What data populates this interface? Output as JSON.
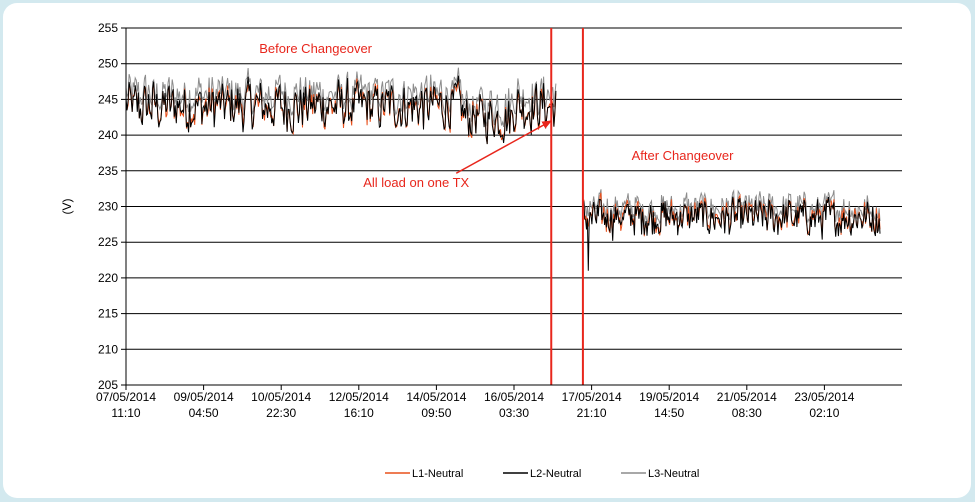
{
  "chart_data": {
    "type": "line",
    "ylabel": "(V)",
    "xlabel": "",
    "ylim": [
      205,
      255
    ],
    "yticks": [
      205,
      210,
      215,
      220,
      225,
      230,
      235,
      240,
      245,
      250,
      255
    ],
    "xticks": [
      {
        "date": "07/05/2014",
        "time": "11:10"
      },
      {
        "date": "09/05/2014",
        "time": "04:50"
      },
      {
        "date": "10/05/2014",
        "time": "22:30"
      },
      {
        "date": "12/05/2014",
        "time": "16:10"
      },
      {
        "date": "14/05/2014",
        "time": "09:50"
      },
      {
        "date": "16/05/2014",
        "time": "03:30"
      },
      {
        "date": "17/05/2014",
        "time": "21:10"
      },
      {
        "date": "19/05/2014",
        "time": "14:50"
      },
      {
        "date": "21/05/2014",
        "time": "08:30"
      },
      {
        "date": "23/05/2014",
        "time": "02:10"
      }
    ],
    "grid": true,
    "legend_position": "bottom",
    "series": [
      {
        "name": "L1-Neutral",
        "color": "#e8501c",
        "segments": [
          {
            "x_start": "07/05/2014 11:10",
            "x_end": "17/05/2014 02:00",
            "mean": 244.0,
            "swing": 2.8
          },
          {
            "x_start": "17/05/2014 16:30",
            "x_end": "24/05/2014 08:00",
            "mean": 228.6,
            "swing": 2.0
          }
        ]
      },
      {
        "name": "L2-Neutral",
        "color": "#000000",
        "segments": [
          {
            "x_start": "07/05/2014 11:10",
            "x_end": "17/05/2014 02:00",
            "mean": 244.0,
            "swing": 3.0
          },
          {
            "x_start": "17/05/2014 16:30",
            "x_end": "24/05/2014 08:00",
            "mean": 228.4,
            "swing": 2.2
          }
        ]
      },
      {
        "name": "L3-Neutral",
        "color": "#8c8c8c",
        "segments": [
          {
            "x_start": "07/05/2014 11:10",
            "x_end": "17/05/2014 02:00",
            "mean": 245.8,
            "swing": 2.4
          },
          {
            "x_start": "17/05/2014 16:30",
            "x_end": "24/05/2014 08:00",
            "mean": 229.8,
            "swing": 1.8
          }
        ]
      }
    ],
    "events": [
      {
        "x": "16/05/2014 23:30",
        "color": "#e8261c"
      },
      {
        "x": "17/05/2014 16:30",
        "color": "#e8261c"
      }
    ],
    "annotations": [
      {
        "text": "Before Changeover",
        "x": "11/05/2014 17:00",
        "y": 251.5
      },
      {
        "text": "After Changeover",
        "x": "19/05/2014 22:00",
        "y": 236.5
      },
      {
        "text": "All load on one TX",
        "x": "13/05/2014 23:00",
        "y": 232.7,
        "arrow_to": {
          "x": "16/05/2014 23:30",
          "y": 242.0
        }
      }
    ]
  }
}
